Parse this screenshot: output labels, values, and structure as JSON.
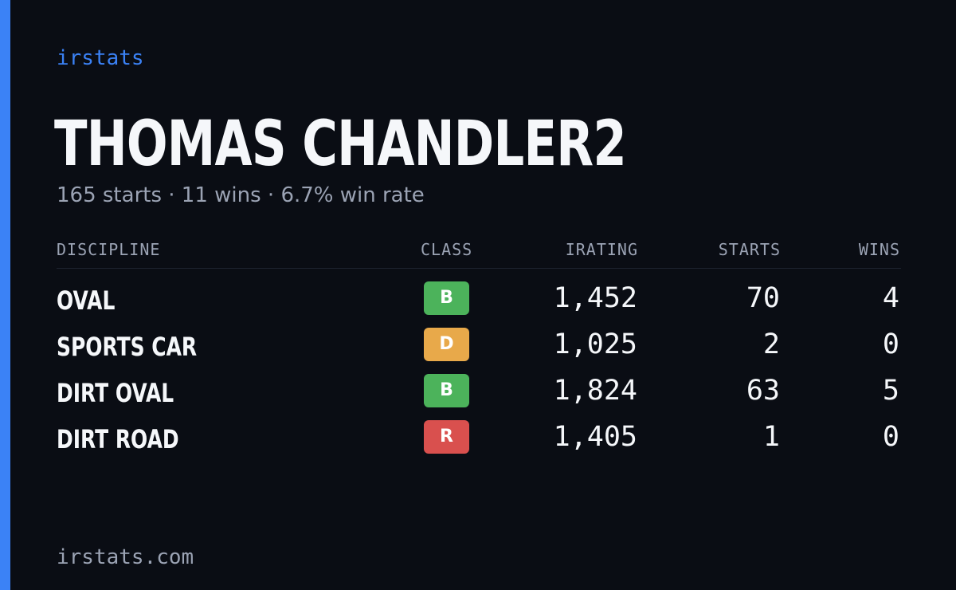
{
  "brand": "irstats",
  "driver": {
    "name": "THOMAS CHANDLER2",
    "summary": "165 starts · 11 wins · 6.7% win rate"
  },
  "table": {
    "headers": {
      "discipline": "DISCIPLINE",
      "class": "CLASS",
      "irating": "IRATING",
      "starts": "STARTS",
      "wins": "WINS"
    },
    "rows": [
      {
        "discipline": "OVAL",
        "class": "B",
        "class_color": "#4cb35b",
        "irating": "1,452",
        "starts": "70",
        "wins": "4"
      },
      {
        "discipline": "SPORTS CAR",
        "class": "D",
        "class_color": "#e8a94a",
        "irating": "1,025",
        "starts": "2",
        "wins": "0"
      },
      {
        "discipline": "DIRT OVAL",
        "class": "B",
        "class_color": "#4cb35b",
        "irating": "1,824",
        "starts": "63",
        "wins": "5"
      },
      {
        "discipline": "DIRT ROAD",
        "class": "R",
        "class_color": "#d9504e",
        "irating": "1,405",
        "starts": "1",
        "wins": "0"
      }
    ]
  },
  "footer": "irstats.com",
  "colors": {
    "background": "#0a0d14",
    "accent": "#3b82f6",
    "text_primary": "#f5f7fa",
    "text_secondary": "#9ba3b4"
  }
}
